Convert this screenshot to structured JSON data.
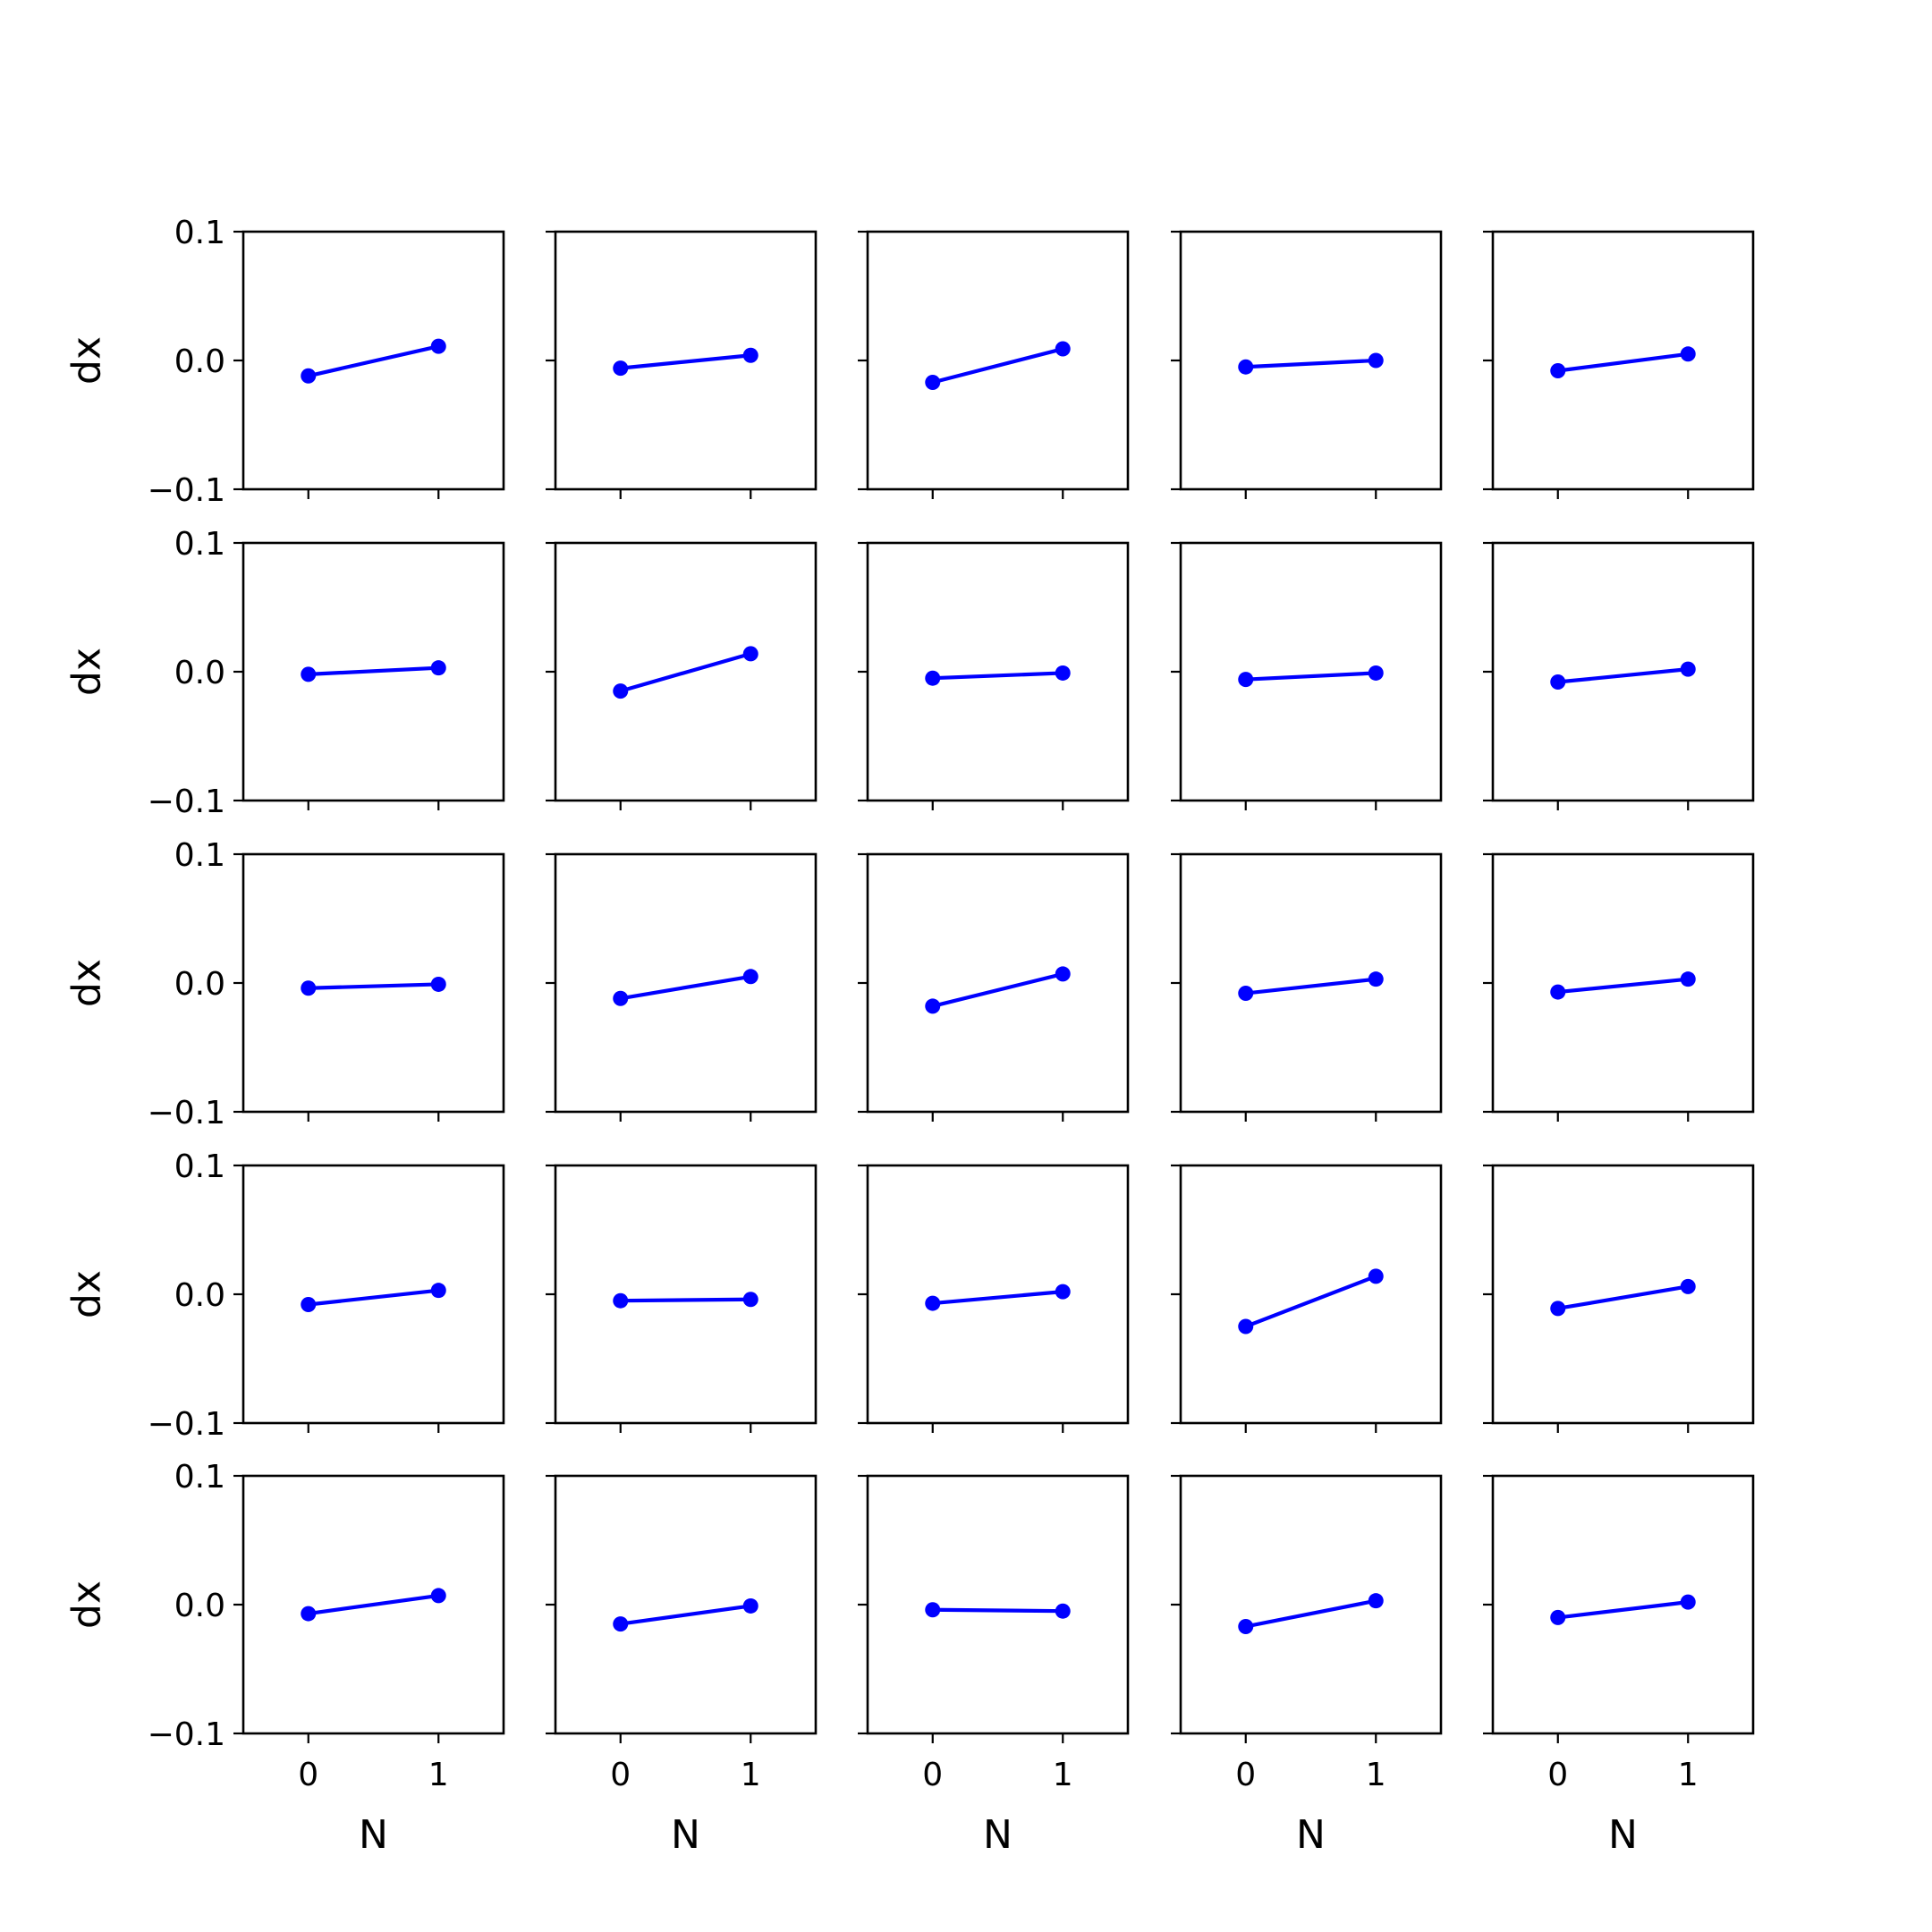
{
  "figure": {
    "rows": 5,
    "cols": 5,
    "line_color": "#0000ff",
    "axis_color": "#000000",
    "background": "#ffffff"
  },
  "axes_common": {
    "xlabel": "N",
    "ylabel": "dx",
    "xlim": [
      -0.5,
      1.5
    ],
    "ylim": [
      -0.1,
      0.1
    ],
    "xticks": [
      0,
      1
    ],
    "xtick_labels": [
      "0",
      "1"
    ],
    "yticks": [
      -0.1,
      0.0,
      0.1
    ],
    "ytick_labels": [
      "−0.1",
      "0.0",
      "0.1"
    ]
  },
  "chart_data": {
    "type": "line",
    "layout": "5x5 grid of small multiples (row-major), shared x and y axes",
    "x": [
      0,
      1
    ],
    "xlabel": "N",
    "ylabel": "dx",
    "xlim": [
      -0.5,
      1.5
    ],
    "ylim": [
      -0.1,
      0.1
    ],
    "grid": false,
    "markers": "filled circle",
    "panels": [
      {
        "values": [
          -0.012,
          0.011
        ]
      },
      {
        "values": [
          -0.006,
          0.004
        ]
      },
      {
        "values": [
          -0.017,
          0.009
        ]
      },
      {
        "values": [
          -0.005,
          0.0
        ]
      },
      {
        "values": [
          -0.008,
          0.005
        ]
      },
      {
        "values": [
          -0.002,
          0.003
        ]
      },
      {
        "values": [
          -0.015,
          0.014
        ]
      },
      {
        "values": [
          -0.005,
          -0.001
        ]
      },
      {
        "values": [
          -0.006,
          -0.001
        ]
      },
      {
        "values": [
          -0.008,
          0.002
        ]
      },
      {
        "values": [
          -0.004,
          -0.001
        ]
      },
      {
        "values": [
          -0.012,
          0.005
        ]
      },
      {
        "values": [
          -0.018,
          0.007
        ]
      },
      {
        "values": [
          -0.008,
          0.003
        ]
      },
      {
        "values": [
          -0.007,
          0.003
        ]
      },
      {
        "values": [
          -0.008,
          0.003
        ]
      },
      {
        "values": [
          -0.005,
          -0.004
        ]
      },
      {
        "values": [
          -0.007,
          0.002
        ]
      },
      {
        "values": [
          -0.025,
          0.014
        ]
      },
      {
        "values": [
          -0.011,
          0.006
        ]
      },
      {
        "values": [
          -0.007,
          0.007
        ]
      },
      {
        "values": [
          -0.015,
          -0.001
        ]
      },
      {
        "values": [
          -0.004,
          -0.005
        ]
      },
      {
        "values": [
          -0.017,
          0.003
        ]
      },
      {
        "values": [
          -0.01,
          0.002
        ]
      }
    ]
  }
}
